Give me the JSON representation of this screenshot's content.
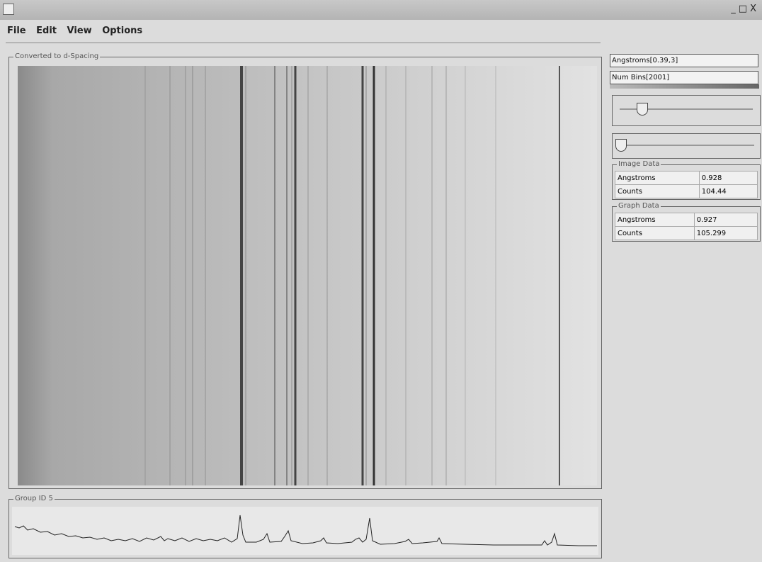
{
  "window": {
    "menu": [
      "File",
      "Edit",
      "View",
      "Options"
    ]
  },
  "image_panel": {
    "title": "Converted to d-Spacing"
  },
  "graph_panel": {
    "title": "Group ID 5"
  },
  "side_panel": {
    "range_field": "Angstroms[0.39,3]",
    "bins_field": "Num Bins[2001]",
    "image_data": {
      "title": "Image Data",
      "rows": [
        [
          "Angstroms",
          "0.928"
        ],
        [
          "Counts",
          "104.44"
        ]
      ]
    },
    "graph_data": {
      "title": "Graph Data",
      "rows": [
        [
          "Angstroms",
          "0.927"
        ],
        [
          "Counts",
          "105.299"
        ]
      ]
    }
  }
}
